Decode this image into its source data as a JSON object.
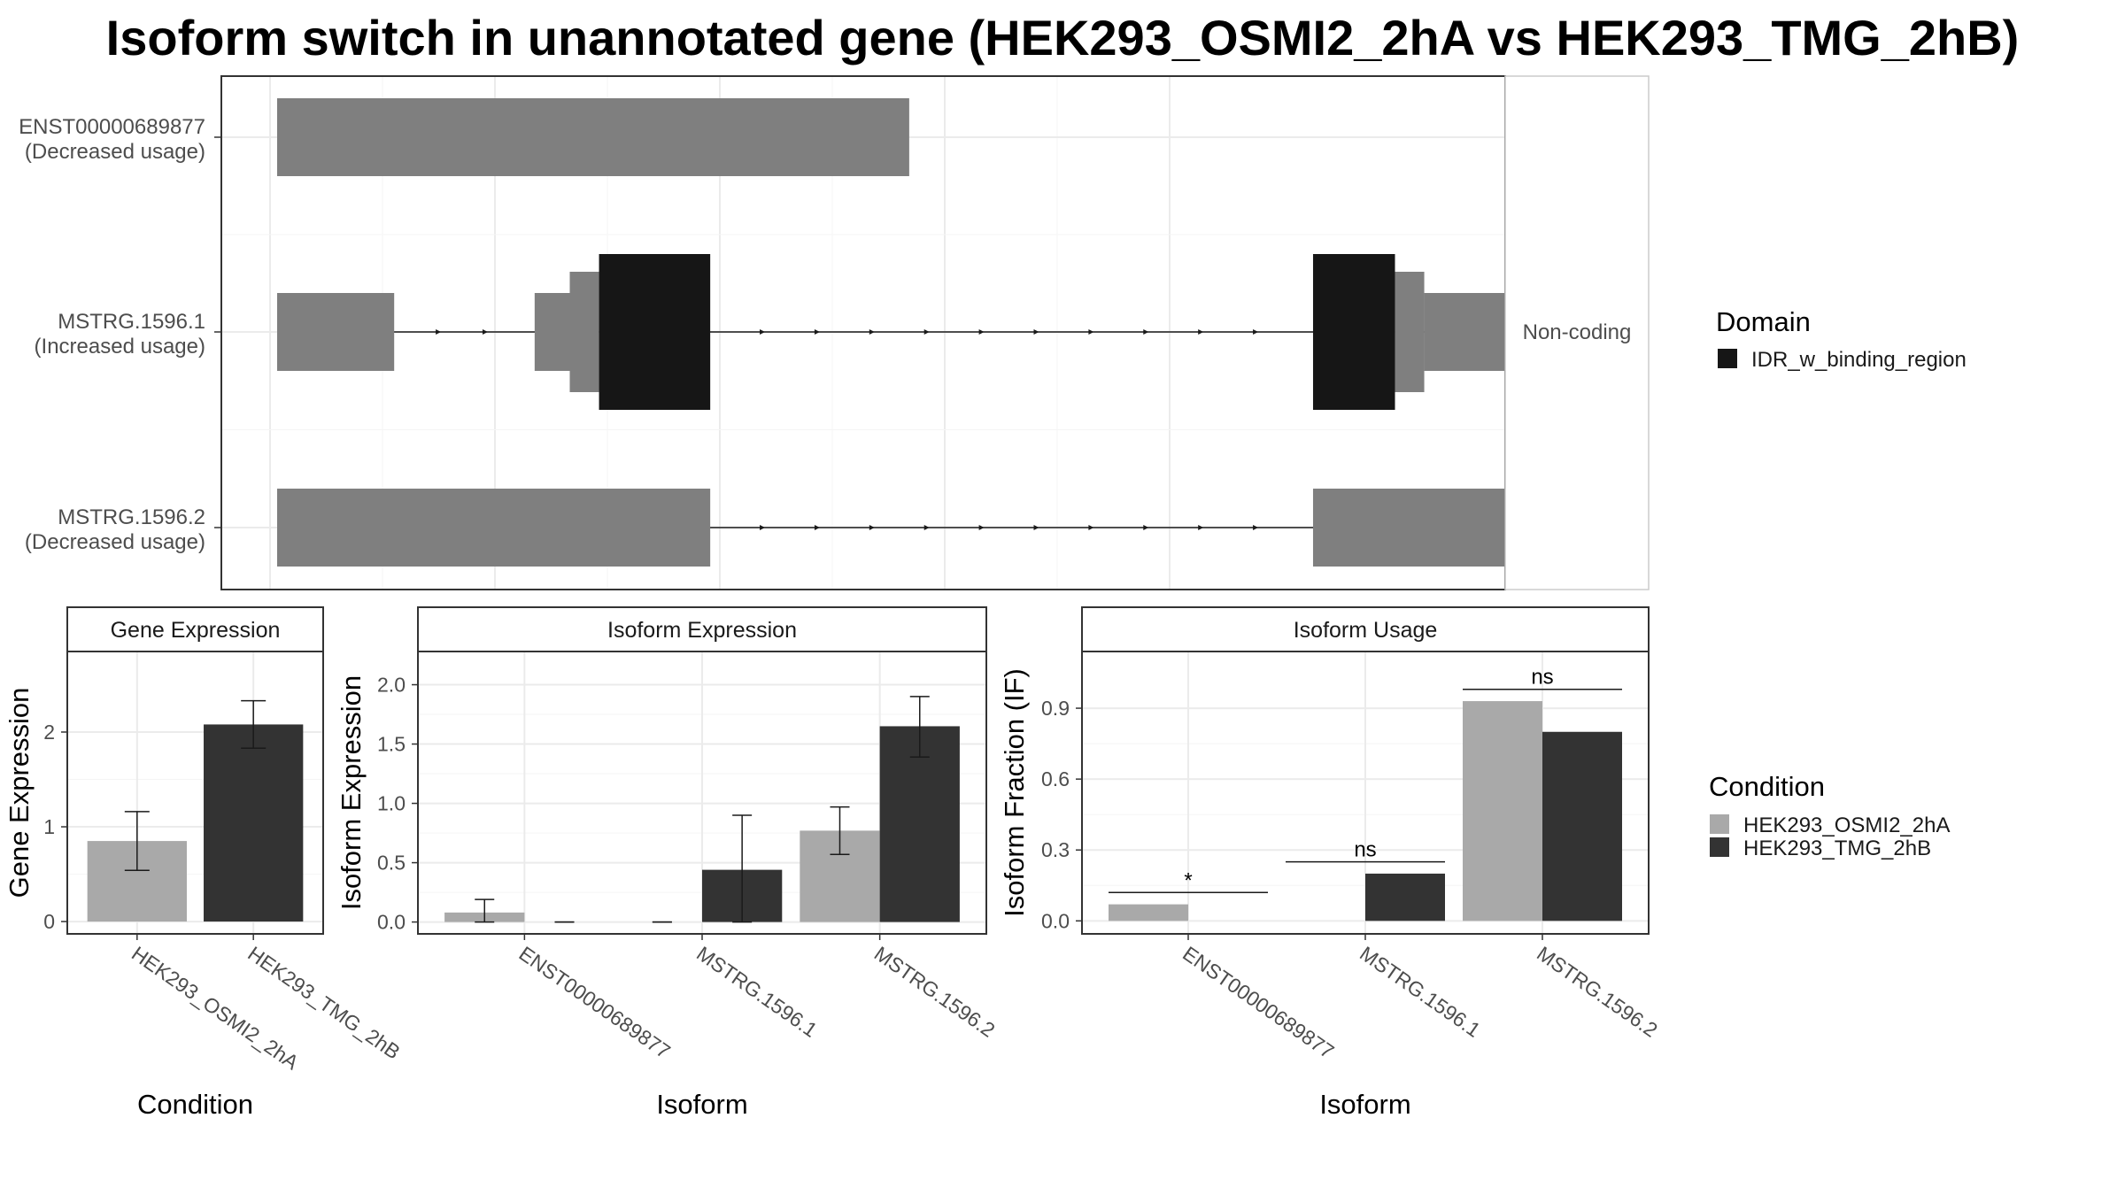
{
  "title": "Isoform switch in unannotated gene (HEK293_OSMI2_2hA vs HEK293_TMG_2hB)",
  "colors": {
    "condition_a": "#a9a9a9",
    "condition_b": "#333333",
    "transcript": "#7f7f7f",
    "domain": "#161616"
  },
  "chart_data": [
    {
      "type": "gene-structure",
      "facet_label": "Non-coding",
      "transcripts": [
        {
          "id": "ENST00000689877",
          "usage": "(Decreased usage)",
          "exons": [
            {
              "start": 0.0,
              "end": 0.54,
              "type": "utr"
            }
          ]
        },
        {
          "id": "MSTRG.1596.1",
          "usage": "(Increased usage)",
          "exons": [
            {
              "start": 0.0,
              "end": 0.1,
              "type": "utr"
            },
            {
              "start": 0.22,
              "end": 0.25,
              "type": "utr"
            },
            {
              "start": 0.25,
              "end": 0.275,
              "type": "cds"
            },
            {
              "start": 0.275,
              "end": 0.37,
              "type": "domain"
            },
            {
              "start": 0.885,
              "end": 0.955,
              "type": "domain"
            },
            {
              "start": 0.955,
              "end": 0.98,
              "type": "cds"
            },
            {
              "start": 0.98,
              "end": 1.06,
              "type": "utr"
            }
          ]
        },
        {
          "id": "MSTRG.1596.2",
          "usage": "(Decreased usage)",
          "exons": [
            {
              "start": 0.0,
              "end": 0.37,
              "type": "utr"
            },
            {
              "start": 0.885,
              "end": 1.055,
              "type": "utr"
            }
          ]
        }
      ]
    },
    {
      "type": "bar",
      "strip": "Gene Expression",
      "xlabel": "Condition",
      "ylabel": "Gene Expression",
      "ylim": [
        -0.13,
        2.85
      ],
      "yticks": [
        0,
        1,
        2
      ],
      "categories": [
        "HEK293_OSMI2_2hA",
        "HEK293_TMG_2hB"
      ],
      "series": [
        {
          "name": "HEK293_OSMI2_2hA",
          "values": [
            0.85,
            null
          ],
          "err": [
            [
              0.54,
              1.16
            ],
            null
          ]
        },
        {
          "name": "HEK293_TMG_2hB",
          "values": [
            null,
            2.08
          ],
          "err": [
            null,
            [
              1.83,
              2.33
            ]
          ]
        }
      ]
    },
    {
      "type": "bar",
      "strip": "Isoform Expression",
      "xlabel": "Isoform",
      "ylabel": "Isoform Expression",
      "ylim": [
        -0.1,
        2.28
      ],
      "yticks": [
        "0.0",
        "0.5",
        "1.0",
        "1.5",
        "2.0"
      ],
      "categories": [
        "ENST00000689877",
        "MSTRG.1596.1",
        "MSTRG.1596.2"
      ],
      "series": [
        {
          "name": "HEK293_OSMI2_2hA",
          "values": [
            0.08,
            0.0,
            0.77
          ],
          "err": [
            [
              0.0,
              0.19
            ],
            [
              0.0,
              0.0
            ],
            [
              0.57,
              0.97
            ]
          ]
        },
        {
          "name": "HEK293_TMG_2hB",
          "values": [
            0.0,
            0.44,
            1.65
          ],
          "err": [
            [
              0.0,
              0.0
            ],
            [
              0.0,
              0.9
            ],
            [
              1.39,
              1.9
            ]
          ]
        }
      ]
    },
    {
      "type": "bar",
      "strip": "Isoform Usage",
      "xlabel": "Isoform",
      "ylabel": "Isoform Fraction (IF)",
      "ylim": [
        -0.055,
        1.14
      ],
      "yticks": [
        "0.0",
        "0.3",
        "0.6",
        "0.9"
      ],
      "categories": [
        "ENST00000689877",
        "MSTRG.1596.1",
        "MSTRG.1596.2"
      ],
      "series": [
        {
          "name": "HEK293_OSMI2_2hA",
          "values": [
            0.07,
            0.0,
            0.93
          ]
        },
        {
          "name": "HEK293_TMG_2hB",
          "values": [
            0.0,
            0.2,
            0.8
          ]
        }
      ],
      "significance": [
        {
          "category": "ENST00000689877",
          "label": "*",
          "y": 0.12
        },
        {
          "category": "MSTRG.1596.1",
          "label": "ns",
          "y": 0.25
        },
        {
          "category": "MSTRG.1596.2",
          "label": "ns",
          "y": 0.98
        }
      ]
    }
  ],
  "legends": {
    "domain": {
      "title": "Domain",
      "items": [
        {
          "label": "IDR_w_binding_region"
        }
      ]
    },
    "condition": {
      "title": "Condition",
      "items": [
        {
          "label": "HEK293_OSMI2_2hA"
        },
        {
          "label": "HEK293_TMG_2hB"
        }
      ]
    }
  }
}
